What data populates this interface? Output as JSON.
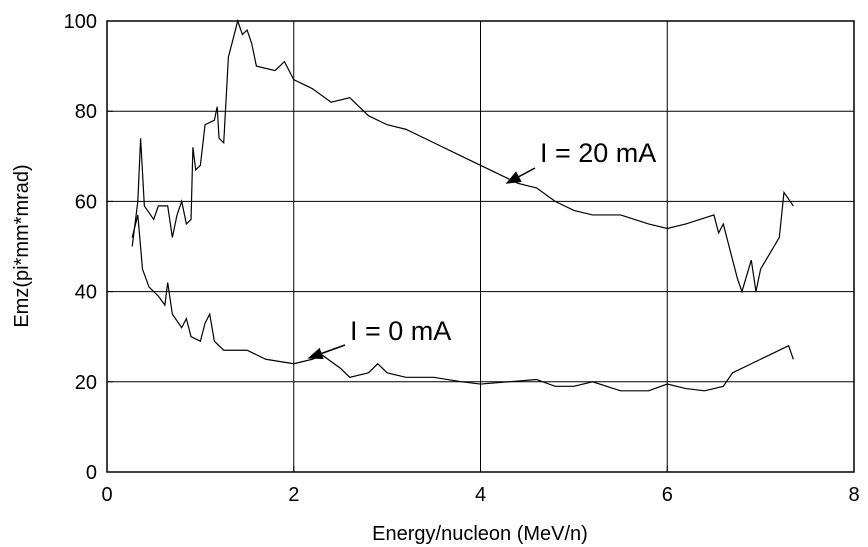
{
  "chart_data": {
    "type": "line",
    "x_label": "Energy/nucleon (MeV/n)",
    "y_label": "Emz(pi*mm*mrad)",
    "xlim": [
      0,
      8
    ],
    "xticks": [
      0,
      2,
      4,
      6,
      8
    ],
    "ylim": [
      0,
      100
    ],
    "yticks": [
      0,
      20,
      40,
      60,
      80,
      100
    ],
    "grid": true,
    "annotations": [
      {
        "text": "I = 20 mA"
      },
      {
        "text": "I = 0 mA"
      }
    ],
    "series": [
      {
        "color": "#000000",
        "x": [
          0.27,
          0.33,
          0.36,
          0.4,
          0.5,
          0.55,
          0.65,
          0.7,
          0.75,
          0.8,
          0.85,
          0.9,
          0.92,
          0.95,
          1.0,
          1.05,
          1.15,
          1.18,
          1.2,
          1.25,
          1.3,
          1.35,
          1.4,
          1.45,
          1.5,
          1.55,
          1.6,
          1.8,
          1.9,
          2.0,
          2.2,
          2.4,
          2.6,
          2.8,
          3.0,
          3.2,
          3.5,
          3.8,
          4.0,
          4.2,
          4.4,
          4.6,
          4.8,
          5.0,
          5.2,
          5.5,
          5.8,
          6.0,
          6.2,
          6.5,
          6.55,
          6.6,
          6.75,
          6.8,
          6.9,
          6.95,
          7.0,
          7.2,
          7.25,
          7.35
        ],
        "values": [
          50,
          60,
          74,
          59,
          56,
          59,
          59,
          52,
          57,
          60,
          55,
          56,
          72,
          67,
          68,
          77,
          78,
          81,
          74,
          73,
          92,
          96,
          100,
          97,
          98,
          95,
          90,
          89,
          91,
          87,
          85,
          82,
          83,
          79,
          77,
          76,
          73,
          70,
          68,
          66,
          64,
          63,
          60,
          58,
          57,
          57,
          55,
          54,
          55,
          57,
          53,
          55,
          43,
          40,
          47,
          40,
          45,
          52,
          62,
          59
        ]
      },
      {
        "color": "#000000",
        "x": [
          0.27,
          0.33,
          0.38,
          0.45,
          0.55,
          0.62,
          0.65,
          0.7,
          0.8,
          0.85,
          0.9,
          1.0,
          1.05,
          1.1,
          1.15,
          1.25,
          1.5,
          1.6,
          1.7,
          2.0,
          2.2,
          2.3,
          2.5,
          2.6,
          2.8,
          2.9,
          3.0,
          3.2,
          3.5,
          3.8,
          4.0,
          4.3,
          4.6,
          4.8,
          5.0,
          5.2,
          5.5,
          5.8,
          6.0,
          6.2,
          6.4,
          6.6,
          6.7,
          6.9,
          7.0,
          7.3,
          7.35
        ],
        "values": [
          52,
          57,
          45,
          41,
          39,
          37,
          42,
          35,
          32,
          34,
          30,
          29,
          33,
          35,
          29,
          27,
          27,
          26,
          25,
          24,
          25,
          26,
          23,
          21,
          22,
          24,
          22,
          21,
          21,
          20,
          19.5,
          20,
          20.5,
          19,
          19,
          20,
          18,
          18,
          19.5,
          18.5,
          18,
          19,
          22,
          24,
          25,
          28,
          25
        ]
      }
    ]
  }
}
